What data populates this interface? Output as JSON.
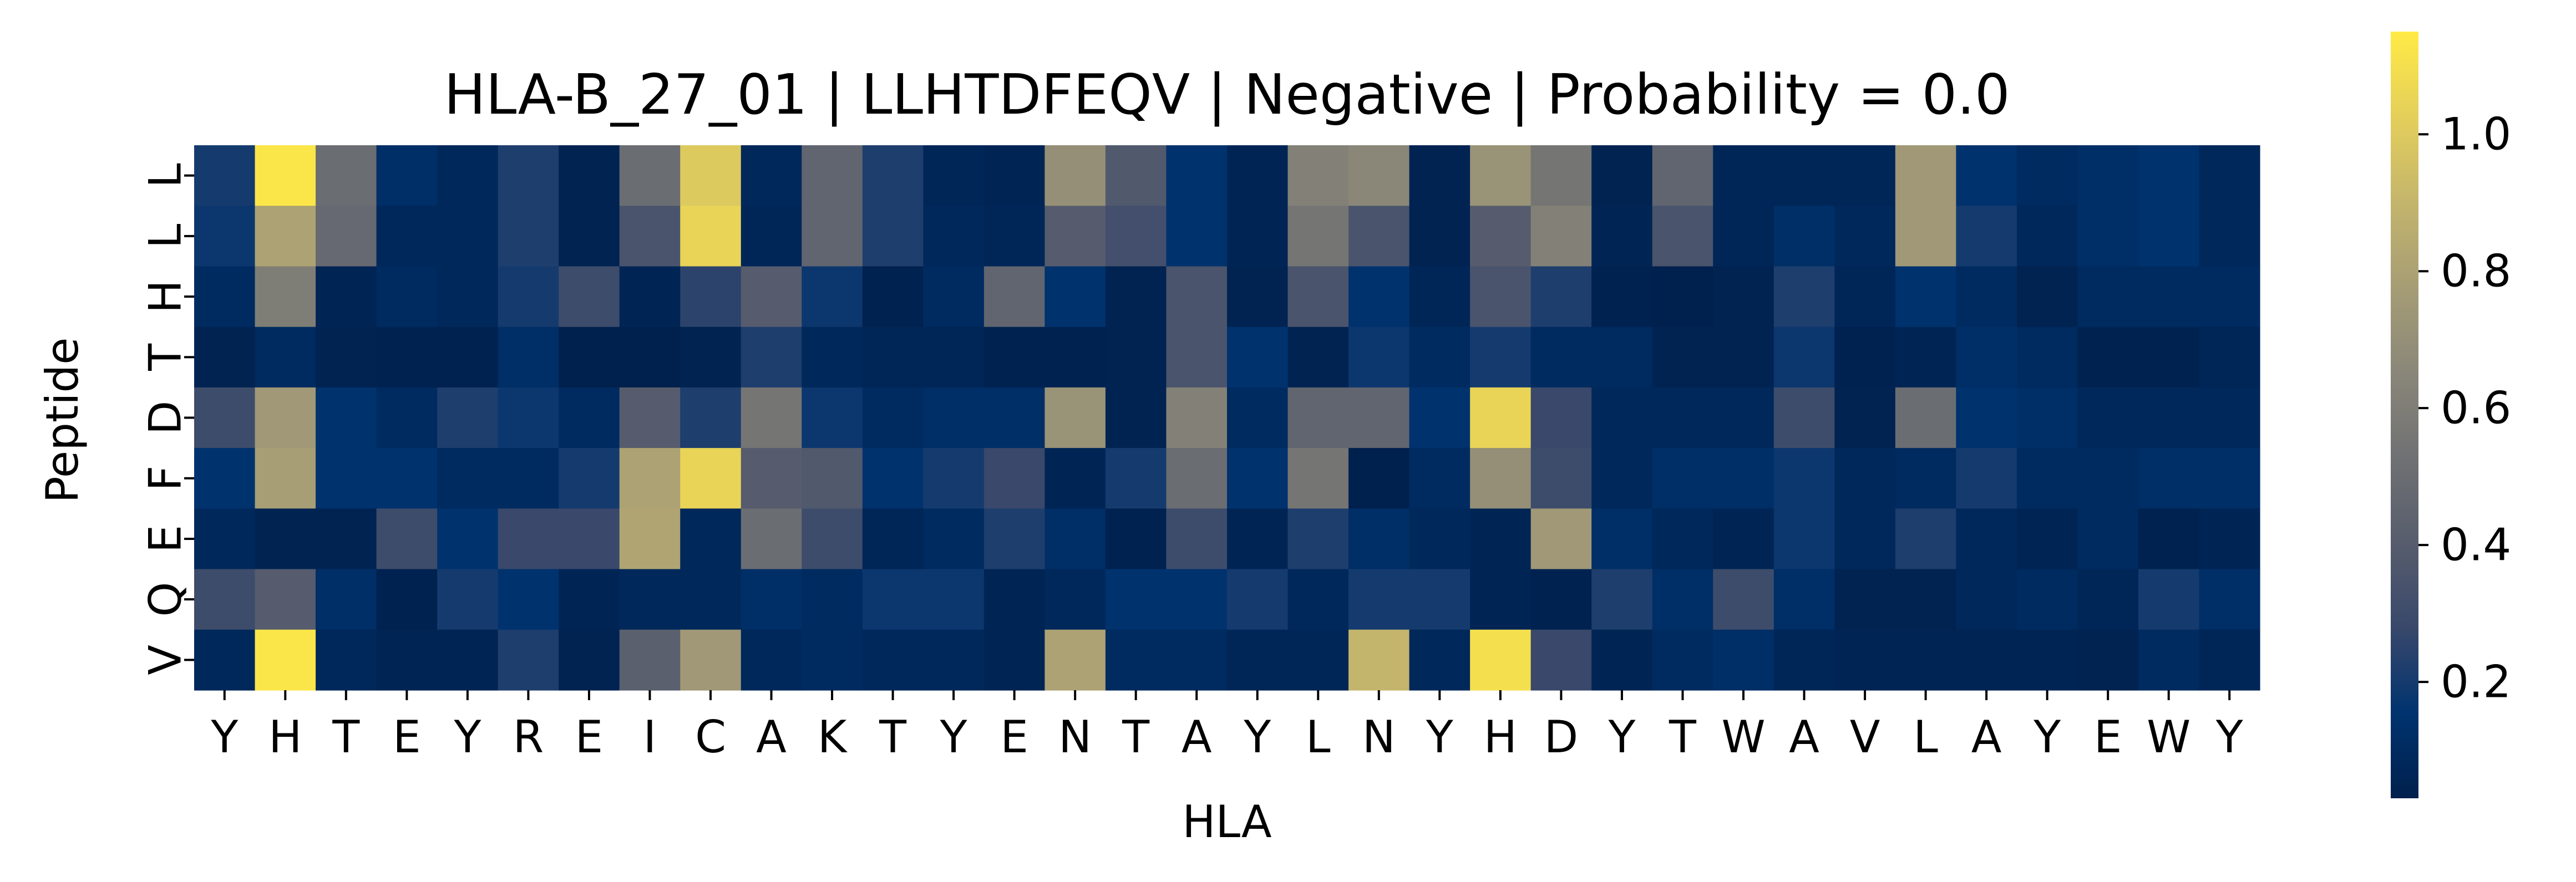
{
  "chart_data": {
    "type": "heatmap",
    "title": "HLA-B_27_01 | LLHTDFEQV | Negative | Probability = 0.0",
    "xlabel": "HLA",
    "ylabel": "Peptide",
    "x_categories": [
      "Y",
      "H",
      "T",
      "E",
      "Y",
      "R",
      "E",
      "I",
      "C",
      "A",
      "K",
      "T",
      "Y",
      "E",
      "N",
      "T",
      "A",
      "Y",
      "L",
      "N",
      "Y",
      "H",
      "D",
      "Y",
      "T",
      "W",
      "A",
      "V",
      "L",
      "A",
      "Y",
      "E",
      "W",
      "Y"
    ],
    "y_categories": [
      "L",
      "L",
      "H",
      "T",
      "D",
      "F",
      "E",
      "Q",
      "V"
    ],
    "values": [
      [
        0.2,
        1.13,
        0.5,
        0.12,
        0.08,
        0.22,
        0.05,
        0.5,
        1.0,
        0.08,
        0.45,
        0.22,
        0.07,
        0.06,
        0.7,
        0.38,
        0.15,
        0.06,
        0.62,
        0.65,
        0.05,
        0.72,
        0.55,
        0.05,
        0.45,
        0.07,
        0.07,
        0.07,
        0.75,
        0.15,
        0.1,
        0.12,
        0.15,
        0.08
      ],
      [
        0.18,
        0.8,
        0.48,
        0.08,
        0.08,
        0.22,
        0.05,
        0.35,
        1.05,
        0.07,
        0.45,
        0.22,
        0.08,
        0.07,
        0.4,
        0.32,
        0.15,
        0.06,
        0.55,
        0.35,
        0.05,
        0.4,
        0.62,
        0.06,
        0.35,
        0.07,
        0.12,
        0.08,
        0.75,
        0.2,
        0.08,
        0.12,
        0.15,
        0.08
      ],
      [
        0.1,
        0.6,
        0.06,
        0.1,
        0.08,
        0.2,
        0.3,
        0.06,
        0.25,
        0.4,
        0.18,
        0.04,
        0.1,
        0.45,
        0.15,
        0.05,
        0.35,
        0.05,
        0.35,
        0.15,
        0.07,
        0.35,
        0.22,
        0.04,
        0.03,
        0.05,
        0.22,
        0.07,
        0.15,
        0.1,
        0.05,
        0.1,
        0.1,
        0.1
      ],
      [
        0.05,
        0.1,
        0.05,
        0.04,
        0.04,
        0.12,
        0.03,
        0.03,
        0.05,
        0.22,
        0.08,
        0.07,
        0.07,
        0.04,
        0.04,
        0.05,
        0.35,
        0.15,
        0.05,
        0.18,
        0.1,
        0.2,
        0.1,
        0.1,
        0.05,
        0.05,
        0.18,
        0.04,
        0.06,
        0.12,
        0.1,
        0.04,
        0.04,
        0.07
      ],
      [
        0.3,
        0.75,
        0.15,
        0.1,
        0.22,
        0.18,
        0.1,
        0.4,
        0.22,
        0.55,
        0.18,
        0.1,
        0.12,
        0.12,
        0.72,
        0.05,
        0.62,
        0.1,
        0.45,
        0.45,
        0.15,
        1.05,
        0.28,
        0.08,
        0.08,
        0.08,
        0.3,
        0.05,
        0.5,
        0.15,
        0.12,
        0.08,
        0.08,
        0.08
      ],
      [
        0.15,
        0.78,
        0.15,
        0.15,
        0.1,
        0.1,
        0.2,
        0.8,
        1.05,
        0.4,
        0.38,
        0.15,
        0.2,
        0.28,
        0.06,
        0.2,
        0.5,
        0.15,
        0.55,
        0.03,
        0.1,
        0.7,
        0.3,
        0.08,
        0.12,
        0.12,
        0.18,
        0.08,
        0.1,
        0.2,
        0.1,
        0.1,
        0.12,
        0.12
      ],
      [
        0.08,
        0.05,
        0.05,
        0.3,
        0.15,
        0.28,
        0.28,
        0.82,
        0.08,
        0.5,
        0.3,
        0.07,
        0.1,
        0.22,
        0.12,
        0.04,
        0.3,
        0.06,
        0.22,
        0.12,
        0.08,
        0.06,
        0.75,
        0.12,
        0.08,
        0.06,
        0.18,
        0.08,
        0.22,
        0.08,
        0.06,
        0.1,
        0.04,
        0.06
      ],
      [
        0.3,
        0.4,
        0.12,
        0.04,
        0.2,
        0.15,
        0.06,
        0.08,
        0.08,
        0.12,
        0.1,
        0.18,
        0.18,
        0.06,
        0.08,
        0.15,
        0.15,
        0.2,
        0.08,
        0.2,
        0.2,
        0.06,
        0.04,
        0.22,
        0.12,
        0.3,
        0.12,
        0.05,
        0.05,
        0.08,
        0.1,
        0.07,
        0.2,
        0.12
      ],
      [
        0.08,
        1.13,
        0.08,
        0.06,
        0.06,
        0.22,
        0.05,
        0.42,
        0.75,
        0.08,
        0.1,
        0.08,
        0.08,
        0.06,
        0.8,
        0.1,
        0.1,
        0.07,
        0.07,
        0.9,
        0.08,
        1.1,
        0.28,
        0.06,
        0.1,
        0.12,
        0.07,
        0.06,
        0.06,
        0.06,
        0.06,
        0.05,
        0.1,
        0.07
      ]
    ],
    "colormap": "cividis",
    "colorbar": {
      "vmin": 0.03,
      "vmax": 1.15,
      "ticks": [
        0.2,
        0.4,
        0.6,
        0.8,
        1.0
      ],
      "tick_labels": [
        "0.2",
        "0.4",
        "0.6",
        "0.8",
        "1.0"
      ]
    },
    "cmap_stops": [
      "#00204d",
      "#00336f",
      "#39486b",
      "#575d6d",
      "#707173",
      "#8a8779",
      "#a69d75",
      "#c4b56c",
      "#e4cf5b",
      "#ffea46"
    ]
  }
}
